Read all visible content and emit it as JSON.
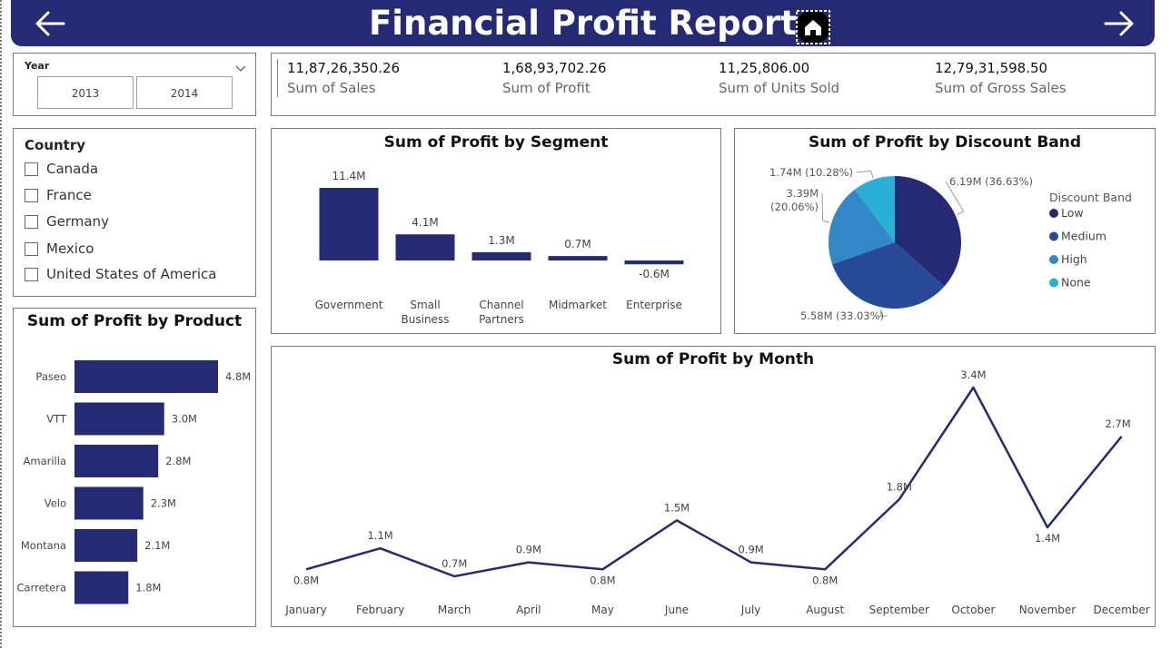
{
  "header": {
    "title": "Financial Profit Report"
  },
  "year_slicer": {
    "title": "Year",
    "options": [
      "2013",
      "2014"
    ]
  },
  "country_slicer": {
    "title": "Country",
    "items": [
      "Canada",
      "France",
      "Germany",
      "Mexico",
      "United States of America"
    ]
  },
  "kpis": [
    {
      "value": "11,87,26,350.26",
      "label": "Sum of Sales"
    },
    {
      "value": "1,68,93,702.26",
      "label": "Sum of Profit"
    },
    {
      "value": "11,25,806.00",
      "label": "Sum of Units Sold"
    },
    {
      "value": "12,79,31,598.50",
      "label": "Sum of Gross Sales"
    }
  ],
  "colors": {
    "primary": "#252a74",
    "medium": "#264a96",
    "high": "#3388c8",
    "none": "#28b0d6"
  },
  "chart_data": [
    {
      "type": "bar",
      "title": "Sum of Profit by Segment",
      "categories": [
        "Government",
        "Small Business",
        "Channel Partners",
        "Midmarket",
        "Enterprise"
      ],
      "category_lines": [
        [
          "Government"
        ],
        [
          "Small",
          "Business"
        ],
        [
          "Channel",
          "Partners"
        ],
        [
          "Midmarket"
        ],
        [
          "Enterprise"
        ]
      ],
      "values": [
        11.4,
        4.1,
        1.3,
        0.7,
        -0.6
      ],
      "labels": [
        "11.4M",
        "4.1M",
        "1.3M",
        "0.7M",
        "-0.6M"
      ]
    },
    {
      "type": "pie",
      "title": "Sum of Profit by Discount Band",
      "legend_title": "Discount Band",
      "slices": [
        {
          "name": "Low",
          "value": 6.19,
          "label": "6.19M (36.63%)",
          "color": "#252a74"
        },
        {
          "name": "Medium",
          "value": 5.58,
          "label": "5.58M (33.03%)",
          "color": "#264a96"
        },
        {
          "name": "High",
          "value": 3.39,
          "label": "3.39M (20.06%)",
          "color": "#3388c8"
        },
        {
          "name": "None",
          "value": 1.74,
          "label": "1.74M (10.28%)",
          "color": "#28b0d6"
        }
      ]
    },
    {
      "type": "bar",
      "orientation": "horizontal",
      "title": "Sum of Profit by Product",
      "categories": [
        "Paseo",
        "VTT",
        "Amarilla",
        "Velo",
        "Montana",
        "Carretera"
      ],
      "values": [
        4.8,
        3.0,
        2.8,
        2.3,
        2.1,
        1.8
      ],
      "labels": [
        "4.8M",
        "3.0M",
        "2.8M",
        "2.3M",
        "2.1M",
        "1.8M"
      ]
    },
    {
      "type": "line",
      "title": "Sum of Profit by Month",
      "x": [
        "January",
        "February",
        "March",
        "April",
        "May",
        "June",
        "July",
        "August",
        "September",
        "October",
        "November",
        "December"
      ],
      "values": [
        0.8,
        1.1,
        0.7,
        0.9,
        0.8,
        1.5,
        0.9,
        0.8,
        1.8,
        3.4,
        1.4,
        2.7
      ],
      "labels": [
        "0.8M",
        "1.1M",
        "0.7M",
        "0.9M",
        "0.8M",
        "1.5M",
        "0.9M",
        "0.8M",
        "1.8M",
        "3.4M",
        "1.4M",
        "2.7M"
      ]
    }
  ]
}
